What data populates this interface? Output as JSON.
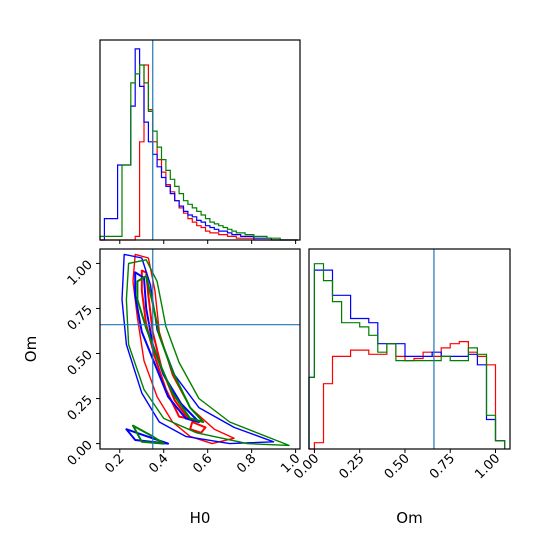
{
  "chart_data": {
    "type": "corner",
    "colors": {
      "run_1": "#ff0000",
      "run_2": "#0000ff",
      "run_3": "#008000",
      "truth": "#1f77b4"
    },
    "truth": {
      "H0": 0.35,
      "Om": 0.66
    },
    "axis_labels": {
      "H0": "H0",
      "Om": "Om"
    },
    "ticks": {
      "H0": {
        "values": [
          0.2,
          0.4,
          0.6,
          0.8,
          1.0
        ],
        "labels": [
          "0.2",
          "0.4",
          "0.6",
          "0.8",
          "1.0"
        ]
      },
      "Om": {
        "values": [
          0.0,
          0.25,
          0.5,
          0.75,
          1.0
        ],
        "labels": [
          "0.00",
          "0.25",
          "0.50",
          "0.75",
          "1.00"
        ]
      }
    },
    "ranges": {
      "H0": [
        0.11,
        1.02
      ],
      "Om": [
        -0.03,
        1.08
      ],
      "H0_hist_density": [
        0,
        1.12
      ]
    },
    "hist_H0": {
      "edges": [
        0.11,
        0.13,
        0.15,
        0.17,
        0.19,
        0.21,
        0.23,
        0.25,
        0.27,
        0.29,
        0.31,
        0.33,
        0.35,
        0.37,
        0.39,
        0.41,
        0.43,
        0.45,
        0.47,
        0.49,
        0.51,
        0.53,
        0.55,
        0.57,
        0.59,
        0.61,
        0.63,
        0.65,
        0.67,
        0.69,
        0.71,
        0.73,
        0.75,
        0.77,
        0.79,
        0.81,
        0.83,
        0.85,
        0.87,
        0.89,
        0.91,
        0.93,
        0.95,
        0.97,
        0.99,
        1.01
      ],
      "series": [
        {
          "color": "red",
          "values": [
            0,
            0,
            0,
            0,
            0,
            0,
            0,
            0,
            0.02,
            0.55,
            0.98,
            0.73,
            0.55,
            0.45,
            0.38,
            0.31,
            0.27,
            0.22,
            0.18,
            0.15,
            0.12,
            0.1,
            0.08,
            0.07,
            0.05,
            0.04,
            0.04,
            0.03,
            0.03,
            0.02,
            0.02,
            0.01,
            0.01,
            0.01,
            0.01,
            0,
            0,
            0,
            0,
            0,
            0,
            0,
            0,
            0,
            0
          ]
        },
        {
          "color": "blue",
          "values": [
            0,
            0.12,
            0.12,
            0.12,
            0.42,
            0.42,
            0.42,
            0.75,
            1.07,
            0.86,
            0.66,
            0.55,
            0.48,
            0.41,
            0.35,
            0.3,
            0.26,
            0.22,
            0.19,
            0.16,
            0.14,
            0.13,
            0.11,
            0.1,
            0.08,
            0.07,
            0.06,
            0.05,
            0.05,
            0.04,
            0.03,
            0.03,
            0.02,
            0.02,
            0.02,
            0.01,
            0.01,
            0.01,
            0.01,
            0,
            0,
            0,
            0,
            0,
            0
          ]
        },
        {
          "color": "green",
          "values": [
            0.02,
            0.02,
            0.02,
            0.02,
            0.02,
            0.42,
            0.42,
            0.88,
            0.93,
            0.98,
            0.88,
            0.72,
            0.61,
            0.52,
            0.45,
            0.39,
            0.34,
            0.3,
            0.26,
            0.22,
            0.2,
            0.18,
            0.16,
            0.14,
            0.12,
            0.1,
            0.09,
            0.08,
            0.07,
            0.06,
            0.05,
            0.04,
            0.04,
            0.03,
            0.03,
            0.02,
            0.02,
            0.02,
            0.01,
            0.01,
            0.01,
            0,
            0,
            0,
            0
          ]
        }
      ]
    },
    "hist_Om": {
      "edges": [
        -0.03,
        0.0,
        0.05,
        0.1,
        0.15,
        0.2,
        0.25,
        0.3,
        0.35,
        0.4,
        0.45,
        0.5,
        0.55,
        0.6,
        0.65,
        0.7,
        0.75,
        0.8,
        0.85,
        0.9,
        0.95,
        1.0,
        1.05
      ],
      "series": [
        {
          "color": "red",
          "values": [
            0,
            0.03,
            0.31,
            0.44,
            0.44,
            0.47,
            0.47,
            0.45,
            0.45,
            0.5,
            0.44,
            0.42,
            0.43,
            0.46,
            0.44,
            0.48,
            0.5,
            0.51,
            0.46,
            0.44,
            0.4,
            0.04
          ]
        },
        {
          "color": "blue",
          "values": [
            0.34,
            0.85,
            0.85,
            0.73,
            0.73,
            0.62,
            0.62,
            0.6,
            0.5,
            0.5,
            0.5,
            0.44,
            0.44,
            0.44,
            0.46,
            0.44,
            0.44,
            0.44,
            0.45,
            0.4,
            0.14,
            0.04
          ]
        },
        {
          "color": "green",
          "values": [
            0.34,
            0.88,
            0.8,
            0.7,
            0.6,
            0.6,
            0.58,
            0.54,
            0.46,
            0.5,
            0.42,
            0.42,
            0.42,
            0.42,
            0.42,
            0.44,
            0.42,
            0.42,
            0.48,
            0.45,
            0.16,
            0.04
          ]
        }
      ]
    },
    "contours": [
      {
        "color": "red",
        "level": "outer",
        "points": [
          [
            0.27,
            1.05
          ],
          [
            0.33,
            1.03
          ],
          [
            0.36,
            0.85
          ],
          [
            0.38,
            0.62
          ],
          [
            0.44,
            0.38
          ],
          [
            0.52,
            0.2
          ],
          [
            0.63,
            0.08
          ],
          [
            0.72,
            0.03
          ],
          [
            0.62,
            0.0
          ],
          [
            0.52,
            0.04
          ],
          [
            0.44,
            0.12
          ],
          [
            0.37,
            0.26
          ],
          [
            0.31,
            0.46
          ],
          [
            0.28,
            0.7
          ],
          [
            0.26,
            0.9
          ]
        ]
      },
      {
        "color": "red",
        "level": "inner",
        "points": [
          [
            0.3,
            0.96
          ],
          [
            0.32,
            0.95
          ],
          [
            0.33,
            0.82
          ],
          [
            0.35,
            0.62
          ],
          [
            0.39,
            0.42
          ],
          [
            0.45,
            0.24
          ],
          [
            0.51,
            0.14
          ],
          [
            0.47,
            0.15
          ],
          [
            0.41,
            0.3
          ],
          [
            0.36,
            0.48
          ],
          [
            0.32,
            0.66
          ],
          [
            0.3,
            0.85
          ]
        ]
      },
      {
        "color": "red",
        "level": "inner",
        "points": [
          [
            0.53,
            0.12
          ],
          [
            0.59,
            0.09
          ],
          [
            0.57,
            0.06
          ],
          [
            0.52,
            0.08
          ]
        ]
      },
      {
        "color": "blue",
        "level": "outer",
        "points": [
          [
            0.22,
            1.05
          ],
          [
            0.3,
            1.03
          ],
          [
            0.34,
            0.88
          ],
          [
            0.37,
            0.63
          ],
          [
            0.45,
            0.38
          ],
          [
            0.56,
            0.2
          ],
          [
            0.72,
            0.09
          ],
          [
            0.9,
            0.01
          ],
          [
            0.7,
            0.0
          ],
          [
            0.5,
            0.04
          ],
          [
            0.38,
            0.12
          ],
          [
            0.3,
            0.28
          ],
          [
            0.23,
            0.55
          ],
          [
            0.21,
            0.8
          ]
        ]
      },
      {
        "color": "blue",
        "level": "inner",
        "points": [
          [
            0.27,
            0.95
          ],
          [
            0.31,
            0.92
          ],
          [
            0.32,
            0.75
          ],
          [
            0.35,
            0.55
          ],
          [
            0.4,
            0.38
          ],
          [
            0.48,
            0.22
          ],
          [
            0.56,
            0.12
          ],
          [
            0.5,
            0.14
          ],
          [
            0.42,
            0.26
          ],
          [
            0.36,
            0.44
          ],
          [
            0.3,
            0.62
          ],
          [
            0.27,
            0.82
          ]
        ]
      },
      {
        "color": "blue",
        "level": "inner",
        "points": [
          [
            0.23,
            0.08
          ],
          [
            0.3,
            0.05
          ],
          [
            0.42,
            0.0
          ],
          [
            0.27,
            0.02
          ]
        ]
      },
      {
        "color": "green",
        "level": "outer",
        "points": [
          [
            0.24,
            1.0
          ],
          [
            0.32,
            1.02
          ],
          [
            0.37,
            0.9
          ],
          [
            0.41,
            0.65
          ],
          [
            0.47,
            0.45
          ],
          [
            0.56,
            0.25
          ],
          [
            0.7,
            0.12
          ],
          [
            0.97,
            -0.01
          ],
          [
            0.78,
            0.0
          ],
          [
            0.55,
            0.06
          ],
          [
            0.4,
            0.14
          ],
          [
            0.31,
            0.3
          ],
          [
            0.24,
            0.55
          ],
          [
            0.23,
            0.8
          ]
        ]
      },
      {
        "color": "green",
        "level": "inner",
        "points": [
          [
            0.28,
            0.9
          ],
          [
            0.32,
            0.93
          ],
          [
            0.35,
            0.78
          ],
          [
            0.38,
            0.6
          ],
          [
            0.44,
            0.4
          ],
          [
            0.52,
            0.2
          ],
          [
            0.58,
            0.12
          ],
          [
            0.52,
            0.14
          ],
          [
            0.44,
            0.28
          ],
          [
            0.38,
            0.45
          ],
          [
            0.32,
            0.64
          ],
          [
            0.28,
            0.8
          ]
        ]
      },
      {
        "color": "green",
        "level": "inner",
        "points": [
          [
            0.26,
            0.1
          ],
          [
            0.35,
            0.04
          ],
          [
            0.4,
            0.0
          ],
          [
            0.3,
            0.01
          ]
        ]
      }
    ]
  }
}
